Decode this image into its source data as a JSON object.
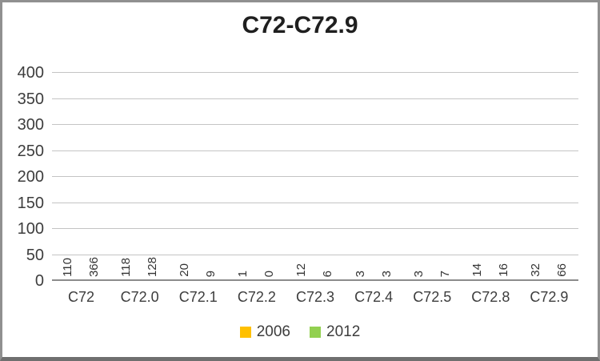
{
  "chart_data": {
    "type": "bar",
    "title": "C72-C72.9",
    "categories": [
      "C72",
      "C72.0",
      "C72.1",
      "C72.2",
      "C72.3",
      "C72.4",
      "C72.5",
      "C72.8",
      "C72.9"
    ],
    "series": [
      {
        "name": "2006",
        "color": "#FFC000",
        "values": [
          110,
          118,
          20,
          1,
          12,
          3,
          3,
          14,
          32
        ]
      },
      {
        "name": "2012",
        "color": "#92D050",
        "values": [
          366,
          128,
          9,
          0,
          6,
          3,
          7,
          16,
          66
        ]
      }
    ],
    "y_axis": {
      "min": 0,
      "max": 400,
      "step": 50,
      "ticks": [
        0,
        50,
        100,
        150,
        200,
        250,
        300,
        350,
        400
      ]
    },
    "xlabel": "",
    "ylabel": "",
    "grid": true,
    "legend_position": "bottom",
    "data_labels": "rotated-vertical-above-bars"
  },
  "colors": {
    "series_2006": "#FFC000",
    "series_2012": "#92D050",
    "gridline": "#C4C4C4",
    "axis_line": "#8C8C8C",
    "text": "#3D3D3D",
    "title_text": "#1F1F1F",
    "frame_border": "#909090"
  }
}
